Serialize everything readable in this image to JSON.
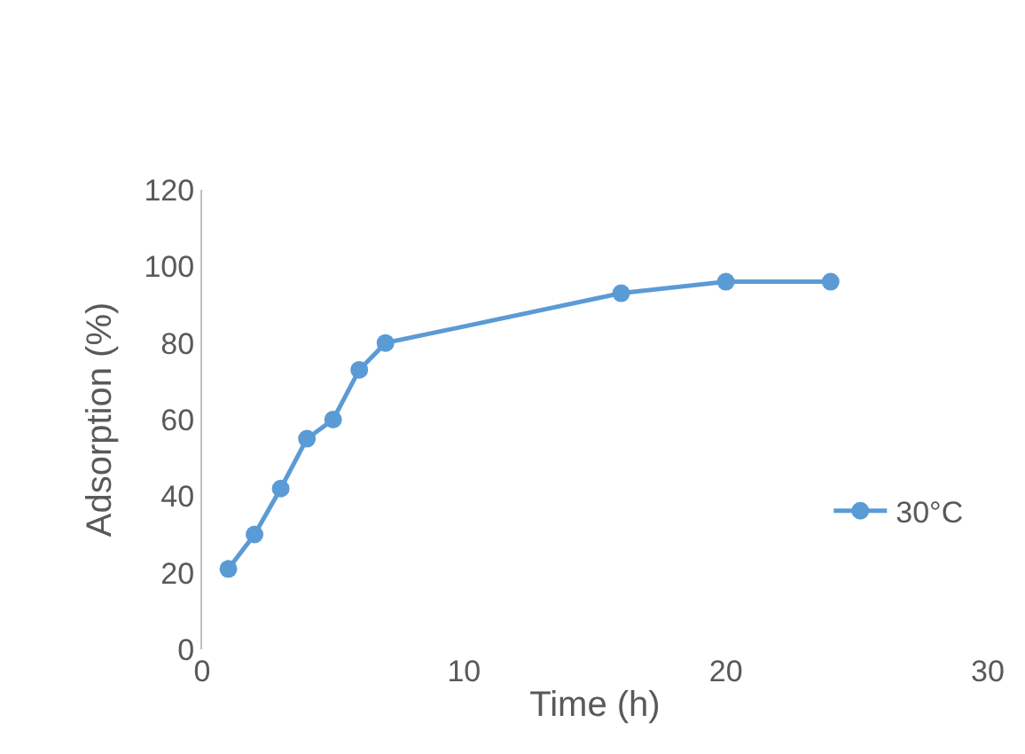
{
  "chart_data": {
    "type": "line",
    "xlabel": "Time (h)",
    "ylabel": "Adsorption (%)",
    "x": [
      1,
      2,
      3,
      4,
      5,
      6,
      7,
      16,
      20,
      24
    ],
    "series": [
      {
        "name": "30°C",
        "color": "#5b9bd5",
        "values": [
          21,
          30,
          42,
          55,
          60,
          73,
          80,
          93,
          96,
          96
        ]
      }
    ],
    "xlim": [
      0,
      30
    ],
    "xticks": [
      0,
      10,
      20,
      30
    ],
    "ylim": [
      0,
      120
    ],
    "yticks": [
      0,
      20,
      40,
      60,
      80,
      100,
      120
    ],
    "grid": false,
    "legend": "right",
    "marker": "circle",
    "line_style": "solid"
  }
}
